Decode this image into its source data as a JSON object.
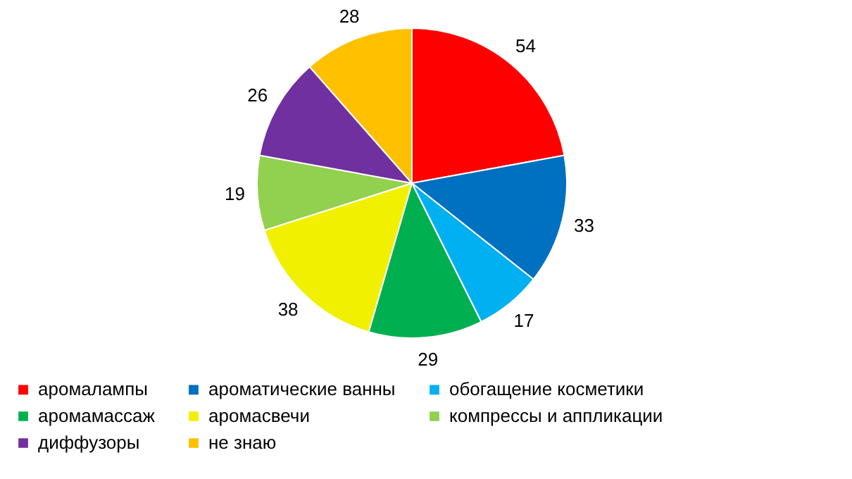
{
  "chart_data": {
    "type": "pie",
    "categories": [
      "аромалампы",
      "ароматические ванны",
      "обогащение косметики",
      "аромамассаж",
      "аромасвечи",
      "компрессы и аппликации",
      "диффузоры",
      "не знаю"
    ],
    "values": [
      54,
      33,
      17,
      29,
      38,
      19,
      26,
      28
    ],
    "colors": [
      "#ff0000",
      "#0070c0",
      "#00b0f0",
      "#00b050",
      "#f0f000",
      "#92d050",
      "#7030a0",
      "#ffc000"
    ],
    "data_labels": true,
    "legend": "bottom"
  }
}
